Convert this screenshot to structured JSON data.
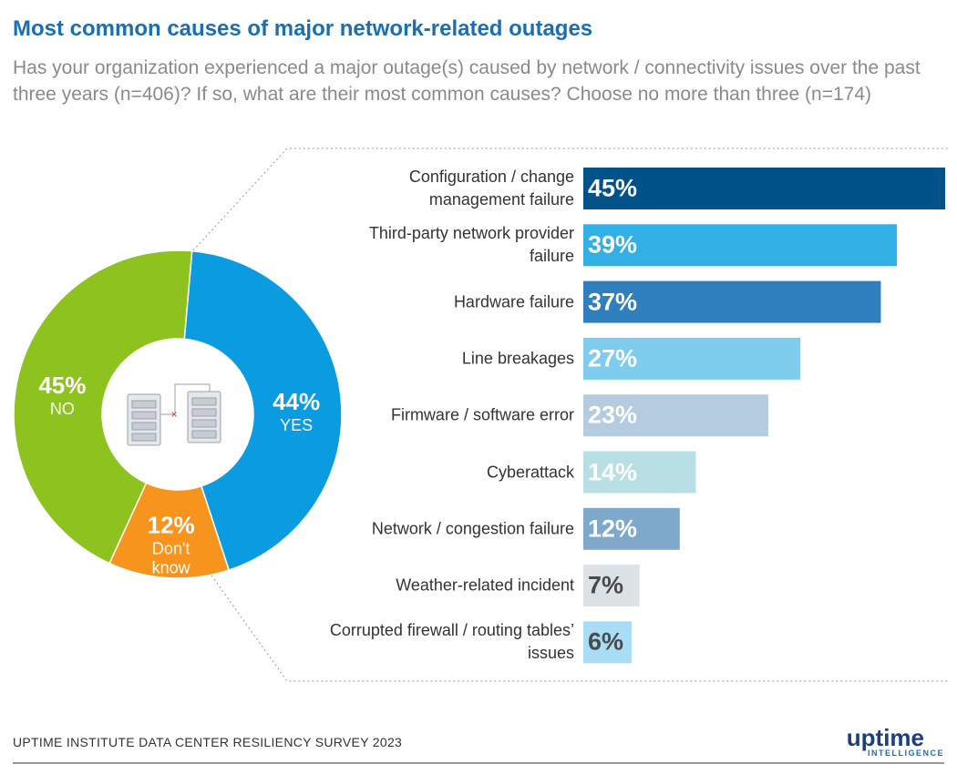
{
  "header": {
    "title": "Most common causes of major network-related outages",
    "subtitle": "Has your organization experienced a major outage(s) caused by network / connectivity issues over the past three years (n=406)? If so, what are their most common causes? Choose no more than three (n=174)"
  },
  "chart_data": [
    {
      "type": "donut",
      "categories": [
        "YES",
        "Don't know",
        "NO"
      ],
      "values": [
        44,
        12,
        45
      ],
      "value_labels": [
        "44%",
        "12%",
        "45%"
      ],
      "colors": [
        "#0a9be0",
        "#f7941d",
        "#8dc21f"
      ]
    },
    {
      "type": "hbar",
      "categories": [
        "Configuration / change management failure",
        "Third-party network provider failure",
        "Hardware failure",
        "Line breakages",
        "Firmware / software error",
        "Cyberattack",
        "Network / congestion failure",
        "Weather-related incident",
        "Corrupted firewall / routing tables’ issues"
      ],
      "values": [
        45,
        39,
        37,
        27,
        23,
        14,
        12,
        7,
        6
      ],
      "value_labels": [
        "45%",
        "39%",
        "37%",
        "27%",
        "23%",
        "14%",
        "12%",
        "7%",
        "6%"
      ],
      "colors": [
        "#005288",
        "#32b0e6",
        "#2f7fbf",
        "#7ecdee",
        "#b5cbdf",
        "#b8dfe3",
        "#7fa9cb",
        "#dde2e6",
        "#a9dcf5"
      ],
      "label_colors": [
        "#ffffff",
        "#ffffff",
        "#ffffff",
        "#ffffff",
        "#ffffff",
        "#ffffff",
        "#ffffff",
        "#4a4a4a",
        "#4a4a4a"
      ]
    }
  ],
  "footer": {
    "source": "UPTIME INSTITUTE DATA CENTER RESILIENCY SURVEY 2023",
    "logo": "uptime",
    "logo_tagline": "INTELLIGENCE"
  }
}
